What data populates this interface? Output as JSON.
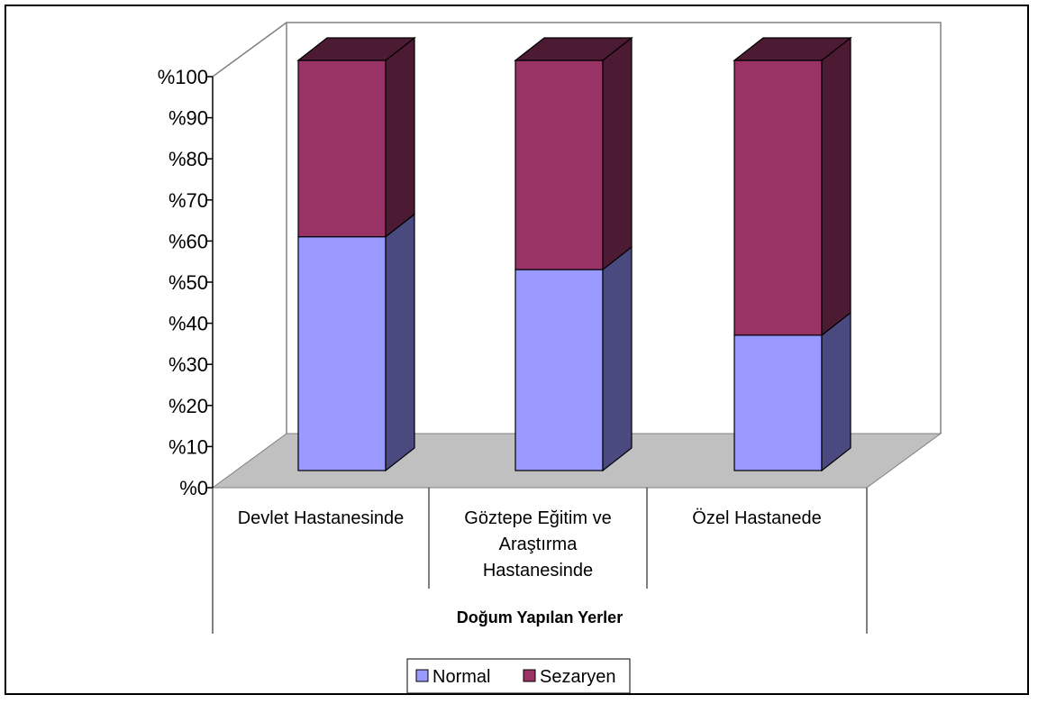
{
  "chart_data": {
    "type": "bar",
    "stacked": true,
    "percent_stacked": true,
    "three_d": true,
    "categories": [
      "Devlet Hastanesinde",
      "Göztepe Eğitim ve Araştırma Hastanesinde",
      "Özel Hastanede"
    ],
    "category_lines": [
      [
        "Devlet Hastanesinde"
      ],
      [
        "Göztepe Eğitim ve",
        "Araştırma",
        "Hastanesinde"
      ],
      [
        "Özel Hastanede"
      ]
    ],
    "series": [
      {
        "name": "Normal",
        "values": [
          57,
          49,
          33
        ],
        "color": "#9999ff",
        "side_color": "#4a4a80"
      },
      {
        "name": "Sezaryen",
        "values": [
          43,
          51,
          67
        ],
        "color": "#993366",
        "side_color": "#4d1a33"
      }
    ],
    "ylim": [
      0,
      100
    ],
    "yticks": [
      "%0",
      "%10",
      "%20",
      "%30",
      "%40",
      "%50",
      "%60",
      "%70",
      "%80",
      "%90",
      "%100"
    ],
    "xlabel": "Doğum Yapılan Yerler",
    "ylabel": "",
    "title": "",
    "legend_position": "bottom",
    "floor_color": "#c0c0c0"
  }
}
